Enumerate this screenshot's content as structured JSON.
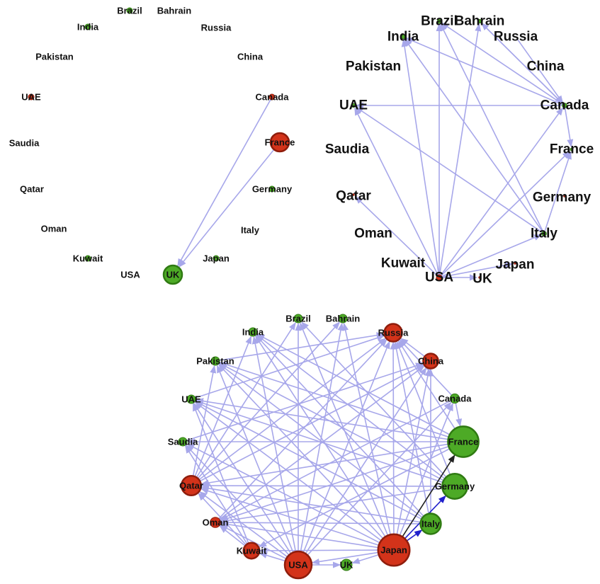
{
  "colors": {
    "green": "#4daa26",
    "red": "#d3331a",
    "edge": "#a7a7ea",
    "edge_dark": "#222222",
    "edge_blue": "#2020cc"
  },
  "panels": [
    {
      "id": "p1",
      "nodes": [
        {
          "name": "Brazil",
          "color": "green",
          "size": 1
        },
        {
          "name": "Bahrain",
          "color": "none",
          "size": 0
        },
        {
          "name": "India",
          "color": "green",
          "size": 1
        },
        {
          "name": "Russia",
          "color": "none",
          "size": 0
        },
        {
          "name": "Pakistan",
          "color": "none",
          "size": 0
        },
        {
          "name": "China",
          "color": "none",
          "size": 0
        },
        {
          "name": "UAE",
          "color": "red",
          "size": 1
        },
        {
          "name": "Canada",
          "color": "red",
          "size": 1
        },
        {
          "name": "Saudia",
          "color": "none",
          "size": 0
        },
        {
          "name": "France",
          "color": "red",
          "size": 3
        },
        {
          "name": "Qatar",
          "color": "none",
          "size": 0
        },
        {
          "name": "Germany",
          "color": "green",
          "size": 1
        },
        {
          "name": "Oman",
          "color": "none",
          "size": 0
        },
        {
          "name": "Italy",
          "color": "none",
          "size": 0
        },
        {
          "name": "Kuwait",
          "color": "green",
          "size": 1
        },
        {
          "name": "Japan",
          "color": "green",
          "size": 1
        },
        {
          "name": "USA",
          "color": "none",
          "size": 0
        },
        {
          "name": "UK",
          "color": "green",
          "size": 3
        }
      ],
      "edges": [
        [
          "Canada",
          "UK"
        ],
        [
          "France",
          "UK"
        ]
      ]
    },
    {
      "id": "p2",
      "nodes": [
        {
          "name": "Brazil",
          "color": "green",
          "size": 1
        },
        {
          "name": "Bahrain",
          "color": "green",
          "size": 1
        },
        {
          "name": "India",
          "color": "green",
          "size": 1
        },
        {
          "name": "Russia",
          "color": "none",
          "size": 0
        },
        {
          "name": "China",
          "color": "none",
          "size": 0
        },
        {
          "name": "Pakistan",
          "color": "none",
          "size": 0
        },
        {
          "name": "UAE",
          "color": "green",
          "size": 1
        },
        {
          "name": "Canada",
          "color": "green",
          "size": 1.2
        },
        {
          "name": "Saudia",
          "color": "none",
          "size": 0
        },
        {
          "name": "France",
          "color": "green",
          "size": 0.8
        },
        {
          "name": "Qatar",
          "color": "red",
          "size": 0.6
        },
        {
          "name": "Germany",
          "color": "red",
          "size": 0.6
        },
        {
          "name": "Oman",
          "color": "none",
          "size": 0
        },
        {
          "name": "Italy",
          "color": "green",
          "size": 1.2
        },
        {
          "name": "Kuwait",
          "color": "none",
          "size": 0
        },
        {
          "name": "Japan",
          "color": "red",
          "size": 0.6
        },
        {
          "name": "USA",
          "color": "red",
          "size": 1.4
        },
        {
          "name": "UK",
          "color": "red",
          "size": 0.6
        }
      ],
      "edges": [
        [
          "USA",
          "India"
        ],
        [
          "USA",
          "Brazil"
        ],
        [
          "USA",
          "Bahrain"
        ],
        [
          "USA",
          "UAE"
        ],
        [
          "USA",
          "Qatar"
        ],
        [
          "USA",
          "Canada"
        ],
        [
          "USA",
          "France"
        ],
        [
          "USA",
          "Italy"
        ],
        [
          "USA",
          "Japan"
        ],
        [
          "USA",
          "UK"
        ],
        [
          "Italy",
          "India"
        ],
        [
          "Italy",
          "UAE"
        ],
        [
          "Italy",
          "Brazil"
        ],
        [
          "Italy",
          "France"
        ],
        [
          "Canada",
          "India"
        ],
        [
          "Canada",
          "UAE"
        ],
        [
          "Canada",
          "Bahrain"
        ],
        [
          "Canada",
          "Brazil"
        ],
        [
          "Canada",
          "France"
        ],
        [
          "Russia",
          "Canada"
        ],
        [
          "Bahrain",
          "Canada"
        ]
      ]
    },
    {
      "id": "p3",
      "nodes": [
        {
          "name": "India",
          "color": "green",
          "size": 1
        },
        {
          "name": "Brazil",
          "color": "green",
          "size": 1
        },
        {
          "name": "Bahrain",
          "color": "green",
          "size": 1
        },
        {
          "name": "Russia",
          "color": "red",
          "size": 2
        },
        {
          "name": "China",
          "color": "red",
          "size": 1.7
        },
        {
          "name": "Pakistan",
          "color": "green",
          "size": 1
        },
        {
          "name": "Canada",
          "color": "green",
          "size": 1.1
        },
        {
          "name": "UAE",
          "color": "green",
          "size": 1
        },
        {
          "name": "Saudia",
          "color": "green",
          "size": 1
        },
        {
          "name": "France",
          "color": "green",
          "size": 3.4
        },
        {
          "name": "Qatar",
          "color": "red",
          "size": 2.2
        },
        {
          "name": "Germany",
          "color": "green",
          "size": 2.8
        },
        {
          "name": "Oman",
          "color": "red",
          "size": 1.2
        },
        {
          "name": "Italy",
          "color": "green",
          "size": 2.3
        },
        {
          "name": "Kuwait",
          "color": "red",
          "size": 1.8
        },
        {
          "name": "Japan",
          "color": "red",
          "size": 3.5
        },
        {
          "name": "USA",
          "color": "red",
          "size": 3.0
        },
        {
          "name": "UK",
          "color": "green",
          "size": 1.3
        }
      ],
      "edges": [
        [
          "USA",
          "India"
        ],
        [
          "USA",
          "Brazil"
        ],
        [
          "USA",
          "Bahrain"
        ],
        [
          "USA",
          "Russia"
        ],
        [
          "USA",
          "China"
        ],
        [
          "USA",
          "Pakistan"
        ],
        [
          "USA",
          "UAE"
        ],
        [
          "USA",
          "Saudia"
        ],
        [
          "USA",
          "Qatar"
        ],
        [
          "USA",
          "Oman"
        ],
        [
          "USA",
          "Kuwait"
        ],
        [
          "USA",
          "UK"
        ],
        [
          "USA",
          "Canada"
        ],
        [
          "Japan",
          "India"
        ],
        [
          "Japan",
          "Brazil"
        ],
        [
          "Japan",
          "Bahrain"
        ],
        [
          "Japan",
          "Russia"
        ],
        [
          "Japan",
          "China"
        ],
        [
          "Japan",
          "Pakistan"
        ],
        [
          "Japan",
          "UAE"
        ],
        [
          "Japan",
          "Saudia"
        ],
        [
          "Japan",
          "Qatar"
        ],
        [
          "Japan",
          "Oman"
        ],
        [
          "Japan",
          "Kuwait"
        ],
        [
          "Japan",
          "USA"
        ],
        [
          "Japan",
          "UK"
        ],
        [
          "Japan",
          "Canada"
        ],
        [
          "France",
          "India"
        ],
        [
          "France",
          "UAE"
        ],
        [
          "France",
          "Saudia"
        ],
        [
          "France",
          "Qatar"
        ],
        [
          "France",
          "Pakistan"
        ],
        [
          "France",
          "Oman"
        ],
        [
          "France",
          "Russia"
        ],
        [
          "France",
          "Kuwait"
        ],
        [
          "Germany",
          "India"
        ],
        [
          "Germany",
          "UAE"
        ],
        [
          "Germany",
          "Qatar"
        ],
        [
          "Germany",
          "Oman"
        ],
        [
          "Germany",
          "Russia"
        ],
        [
          "Germany",
          "Brazil"
        ],
        [
          "Germany",
          "Pakistan"
        ],
        [
          "Italy",
          "Pakistan"
        ],
        [
          "Italy",
          "Qatar"
        ],
        [
          "Italy",
          "Russia"
        ],
        [
          "Italy",
          "UAE"
        ],
        [
          "Italy",
          "China"
        ],
        [
          "Italy",
          "Oman"
        ],
        [
          "Italy",
          "India"
        ],
        [
          "Qatar",
          "Russia"
        ],
        [
          "Qatar",
          "China"
        ],
        [
          "Qatar",
          "Brazil"
        ],
        [
          "Qatar",
          "Bahrain"
        ],
        [
          "Qatar",
          "India"
        ],
        [
          "Qatar",
          "Pakistan"
        ],
        [
          "Kuwait",
          "Qatar"
        ],
        [
          "Kuwait",
          "Saudia"
        ],
        [
          "Kuwait",
          "UAE"
        ],
        [
          "Kuwait",
          "Oman"
        ],
        [
          "Oman",
          "Russia"
        ],
        [
          "Oman",
          "China"
        ],
        [
          "UAE",
          "Russia"
        ],
        [
          "Saudia",
          "China"
        ],
        [
          "Canada",
          "Oman"
        ],
        [
          "Canada",
          "Russia"
        ],
        [
          "China",
          "Russia"
        ],
        [
          "Pakistan",
          "Russia"
        ],
        [
          "Canada",
          "France"
        ]
      ],
      "special_edges": [
        {
          "from": "Japan",
          "to": "France",
          "color": "edge_dark"
        },
        {
          "from": "Japan",
          "to": "Germany",
          "color": "edge_blue"
        },
        {
          "from": "Japan",
          "to": "Italy",
          "color": "edge_blue"
        }
      ]
    }
  ]
}
